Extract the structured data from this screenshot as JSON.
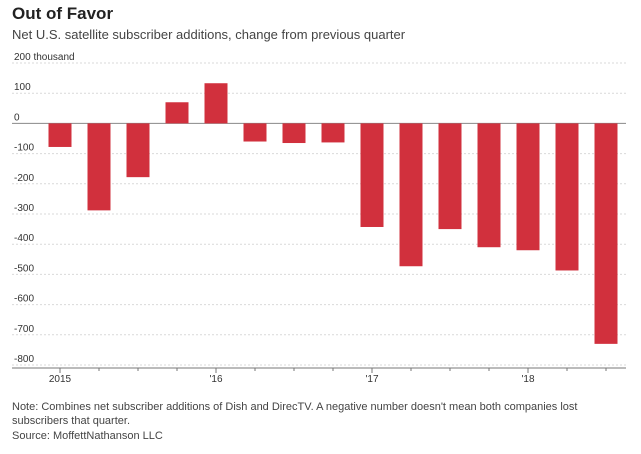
{
  "chart_data": {
    "type": "bar",
    "title": "Out of Favor",
    "subtitle": "Net U.S. satellite subscriber additions, change from previous quarter",
    "categories": [
      "Q1 2015",
      "Q2 2015",
      "Q3 2015",
      "Q4 2015",
      "Q1 2016",
      "Q2 2016",
      "Q3 2016",
      "Q4 2016",
      "Q1 2017",
      "Q2 2017",
      "Q3 2017",
      "Q4 2017",
      "Q1 2018",
      "Q2 2018",
      "Q3 2018"
    ],
    "values": [
      -78,
      -288,
      -178,
      70,
      133,
      -60,
      -65,
      -63,
      -343,
      -473,
      -350,
      -410,
      -420,
      -487,
      -730
    ],
    "ylim": [
      -800,
      200
    ],
    "yticks": [
      {
        "value": 200,
        "label": "200 thousand"
      },
      {
        "value": 100,
        "label": "100"
      },
      {
        "value": 0,
        "label": "0"
      },
      {
        "value": -100,
        "label": "-100"
      },
      {
        "value": -200,
        "label": "-200"
      },
      {
        "value": -300,
        "label": "-300"
      },
      {
        "value": -400,
        "label": "-400"
      },
      {
        "value": -500,
        "label": "-500"
      },
      {
        "value": -600,
        "label": "-600"
      },
      {
        "value": -700,
        "label": "-700"
      },
      {
        "value": -800,
        "label": "-800"
      }
    ],
    "xticks": [
      {
        "index": 0,
        "label": "2015"
      },
      {
        "index": 4,
        "label": "'16"
      },
      {
        "index": 8,
        "label": "'17"
      },
      {
        "index": 12,
        "label": "'18"
      }
    ],
    "xlabel": "",
    "ylabel": "thousand",
    "bar_color": "#d1303d",
    "grid": true,
    "legend": "none"
  },
  "note": "Note: Combines net subscriber additions of Dish and DirecTV. A negative number doesn't mean both companies lost subscribers that quarter.",
  "source": "Source: MoffettNathanson LLC"
}
